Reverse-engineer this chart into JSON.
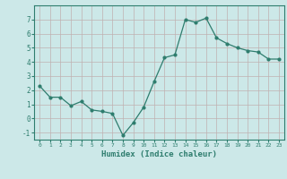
{
  "x": [
    0,
    1,
    2,
    3,
    4,
    5,
    6,
    7,
    8,
    9,
    10,
    11,
    12,
    13,
    14,
    15,
    16,
    17,
    18,
    19,
    20,
    21,
    22,
    23
  ],
  "y": [
    2.3,
    1.5,
    1.5,
    0.9,
    1.2,
    0.6,
    0.5,
    0.35,
    -1.2,
    -0.3,
    0.8,
    2.6,
    4.3,
    4.5,
    7.0,
    6.8,
    7.1,
    5.7,
    5.3,
    5.0,
    4.8,
    4.7,
    4.2,
    4.2
  ],
  "xlim": [
    -0.5,
    23.5
  ],
  "ylim": [
    -1.5,
    8.0
  ],
  "yticks": [
    -1,
    0,
    1,
    2,
    3,
    4,
    5,
    6,
    7
  ],
  "xticks": [
    0,
    1,
    2,
    3,
    4,
    5,
    6,
    7,
    8,
    9,
    10,
    11,
    12,
    13,
    14,
    15,
    16,
    17,
    18,
    19,
    20,
    21,
    22,
    23
  ],
  "xlabel": "Humidex (Indice chaleur)",
  "line_color": "#2e7d6e",
  "marker": "o",
  "marker_size": 2,
  "bg_color": "#cce8e8",
  "grid_color": "#c0b0b0",
  "tick_color": "#2e7d6e",
  "label_color": "#2e7d6e"
}
